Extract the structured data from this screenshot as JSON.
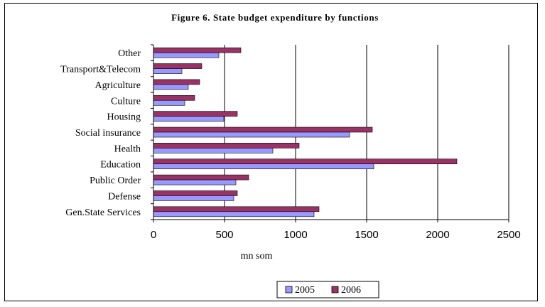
{
  "chart_data": {
    "type": "bar",
    "orientation": "horizontal",
    "title": "Figure 6. State budget expenditure by functions",
    "xlabel": "mn som",
    "ylabel": "",
    "xlim": [
      0,
      2500
    ],
    "xticks": [
      0,
      500,
      1000,
      1500,
      2000,
      2500
    ],
    "grid": true,
    "legend_position": "bottom",
    "categories": [
      "Gen.State Services",
      "Defense",
      "Public Order",
      "Education",
      "Health",
      "Social insurance",
      "Housing",
      "Culture",
      "Agriculture",
      "Transport&Telecom",
      "Other"
    ],
    "series": [
      {
        "name": "2005",
        "color": "#9999ff",
        "values": [
          1130,
          565,
          580,
          1550,
          840,
          1380,
          495,
          220,
          245,
          200,
          460
        ]
      },
      {
        "name": "2006",
        "color": "#993366",
        "values": [
          1165,
          590,
          670,
          2135,
          1025,
          1540,
          590,
          290,
          325,
          340,
          615
        ]
      }
    ]
  }
}
